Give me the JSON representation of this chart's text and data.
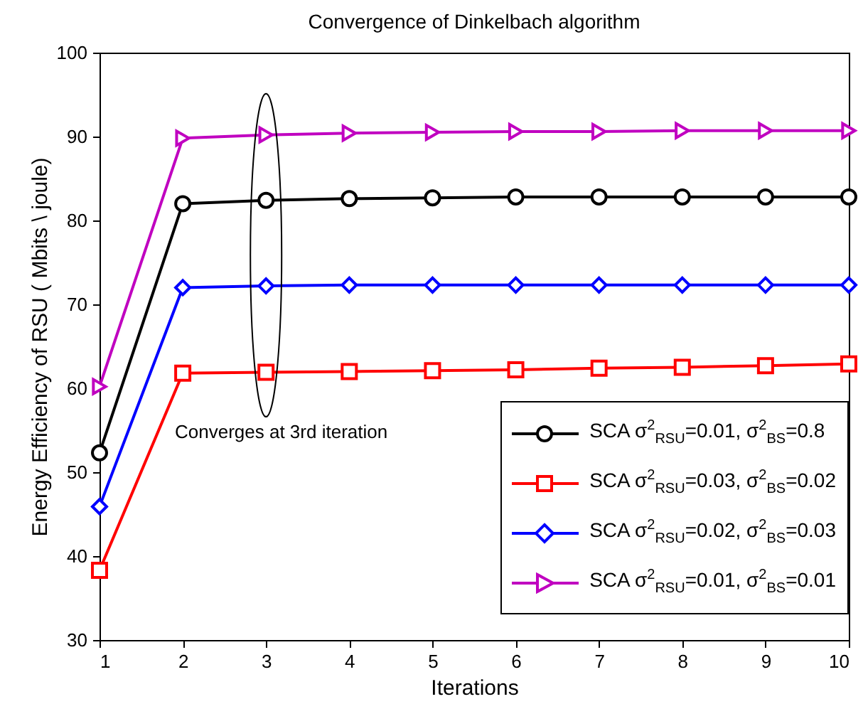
{
  "chart_data": {
    "type": "line",
    "title": "Convergence of Dinkelbach algorithm",
    "xlabel": "Iterations",
    "ylabel": "Energy Efficiency of RSU ( Mbits \\ joule)",
    "x": [
      1,
      2,
      3,
      4,
      5,
      6,
      7,
      8,
      9,
      10
    ],
    "series": [
      {
        "name": "SCA σ$^{2}$$_{RSU}$=0.01, σ$^{2}$$_{BS}$=0.8",
        "color": "#000000",
        "marker": "circle",
        "values": [
          52.3,
          82,
          82.4,
          82.6,
          82.7,
          82.8,
          82.8,
          82.8,
          82.8,
          82.8
        ]
      },
      {
        "name": "SCA σ$^{2}$$_{RSU}$=0.03, σ$^{2}$$_{BS}$=0.02",
        "color": "#ff0000",
        "marker": "square",
        "values": [
          38.3,
          61.8,
          61.9,
          62,
          62.1,
          62.2,
          62.4,
          62.5,
          62.7,
          62.9
        ]
      },
      {
        "name": "SCA σ$^{2}$$_{RSU}$=0.02, σ$^{2}$$_{BS}$=0.03",
        "color": "#0000ff",
        "marker": "diamond",
        "values": [
          45.9,
          72,
          72.2,
          72.3,
          72.3,
          72.3,
          72.3,
          72.3,
          72.3,
          72.3
        ]
      },
      {
        "name": "SCA σ$^{2}$$_{RSU}$=0.01, σ$^{2}$$_{BS}$=0.01",
        "color": "#c000c0",
        "marker": "triangle",
        "values": [
          60.2,
          89.8,
          90.2,
          90.4,
          90.5,
          90.6,
          90.6,
          90.7,
          90.7,
          90.7
        ]
      }
    ],
    "annotations": [
      "Converges at 3rd iteration"
    ],
    "xlim": [
      1,
      10
    ],
    "xticks": [
      1,
      2,
      3,
      4,
      5,
      6,
      7,
      8,
      9,
      10
    ],
    "ylim": [
      30,
      100
    ],
    "yticks": [
      30,
      40,
      50,
      60,
      70,
      80,
      90,
      100
    ],
    "grid": false,
    "legend": "bottom right",
    "line_style": "solid"
  }
}
